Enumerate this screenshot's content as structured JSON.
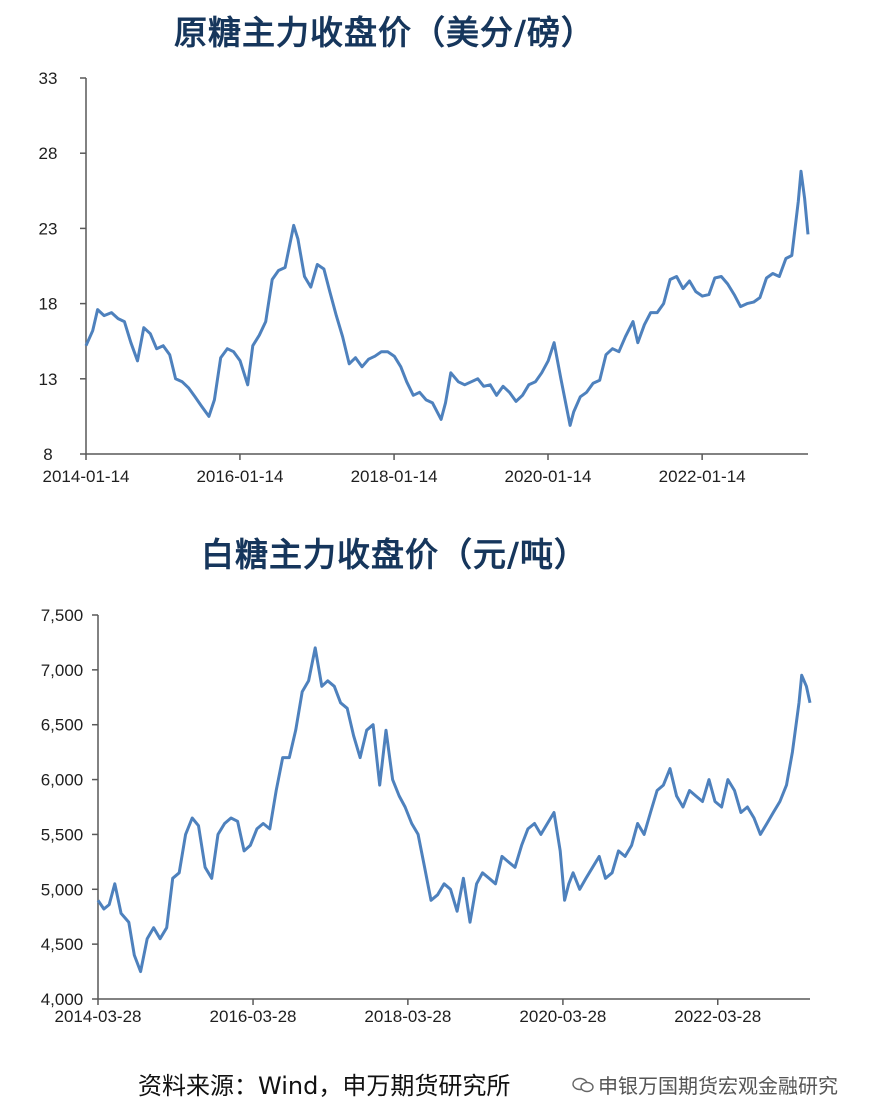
{
  "source_note": "资料来源：Wind，申万期货研究所",
  "watermark": {
    "text": "申银万国期货宏观金融研究",
    "icon": "wechat-icon"
  },
  "colors": {
    "series": "#4e81bd",
    "title": "#16365c"
  },
  "chart_data": [
    {
      "type": "line",
      "title": "原糖主力收盘价（美分/磅）",
      "xlabel": "",
      "ylabel": "",
      "ylim": [
        8,
        33
      ],
      "y_ticks": [
        8,
        13,
        18,
        23,
        28,
        33
      ],
      "y_tick_labels": [
        "8",
        "13",
        "18",
        "23",
        "28",
        "33"
      ],
      "x_ticks": [
        "2014-01-14",
        "2016-01-14",
        "2018-01-14",
        "2020-01-14",
        "2022-01-14"
      ],
      "xlim": [
        "2014-01-14",
        "2023-05-31"
      ],
      "series": [
        {
          "x": [
            "2014-01-14",
            "2014-02-15",
            "2014-03-10",
            "2014-04-10",
            "2014-05-15",
            "2014-06-15",
            "2014-07-15",
            "2014-08-15",
            "2014-09-15",
            "2014-10-15",
            "2014-11-15",
            "2014-12-15",
            "2015-01-15",
            "2015-02-15",
            "2015-03-15",
            "2015-04-15",
            "2015-05-15",
            "2015-06-15",
            "2015-07-15",
            "2015-08-20",
            "2015-09-15",
            "2015-10-15",
            "2015-11-15",
            "2015-12-15",
            "2016-01-15",
            "2016-02-20",
            "2016-03-15",
            "2016-04-15",
            "2016-05-15",
            "2016-06-15",
            "2016-07-15",
            "2016-08-15",
            "2016-09-25",
            "2016-10-15",
            "2016-11-15",
            "2016-12-15",
            "2017-01-15",
            "2017-02-15",
            "2017-03-15",
            "2017-04-15",
            "2017-05-15",
            "2017-06-15",
            "2017-07-15",
            "2017-08-15",
            "2017-09-15",
            "2017-10-15",
            "2017-11-15",
            "2017-12-15",
            "2018-01-15",
            "2018-02-15",
            "2018-03-15",
            "2018-04-15",
            "2018-05-15",
            "2018-06-15",
            "2018-07-15",
            "2018-08-25",
            "2018-09-15",
            "2018-10-10",
            "2018-11-15",
            "2018-12-15",
            "2019-01-15",
            "2019-02-15",
            "2019-03-15",
            "2019-04-15",
            "2019-05-15",
            "2019-06-15",
            "2019-07-15",
            "2019-08-15",
            "2019-09-15",
            "2019-10-15",
            "2019-11-15",
            "2019-12-15",
            "2020-01-15",
            "2020-02-12",
            "2020-03-15",
            "2020-04-28",
            "2020-05-15",
            "2020-06-15",
            "2020-07-15",
            "2020-08-15",
            "2020-09-15",
            "2020-10-15",
            "2020-11-15",
            "2020-12-15",
            "2021-01-15",
            "2021-02-20",
            "2021-03-15",
            "2021-04-15",
            "2021-05-15",
            "2021-06-15",
            "2021-07-15",
            "2021-08-15",
            "2021-09-15",
            "2021-10-15",
            "2021-11-15",
            "2021-12-15",
            "2022-01-15",
            "2022-02-15",
            "2022-03-15",
            "2022-04-15",
            "2022-05-15",
            "2022-06-15",
            "2022-07-15",
            "2022-08-15",
            "2022-09-15",
            "2022-10-15",
            "2022-11-15",
            "2022-12-15",
            "2023-01-15",
            "2023-02-15",
            "2023-03-15",
            "2023-04-15",
            "2023-04-28",
            "2023-05-15",
            "2023-05-31"
          ],
          "y": [
            15.2,
            16.2,
            17.6,
            17.2,
            17.4,
            17.0,
            16.8,
            15.4,
            14.2,
            16.4,
            16.0,
            15.0,
            15.2,
            14.6,
            13.0,
            12.8,
            12.4,
            11.8,
            11.2,
            10.5,
            11.6,
            14.4,
            15.0,
            14.8,
            14.2,
            12.6,
            15.2,
            15.9,
            16.8,
            19.6,
            20.2,
            20.4,
            23.2,
            22.3,
            19.8,
            19.1,
            20.6,
            20.3,
            18.8,
            17.2,
            15.8,
            14.0,
            14.4,
            13.8,
            14.3,
            14.5,
            14.8,
            14.8,
            14.5,
            13.8,
            12.8,
            11.9,
            12.1,
            11.6,
            11.4,
            10.3,
            11.4,
            13.4,
            12.8,
            12.6,
            12.8,
            13.0,
            12.5,
            12.6,
            11.9,
            12.5,
            12.1,
            11.5,
            11.9,
            12.6,
            12.8,
            13.4,
            14.2,
            15.4,
            13.0,
            9.9,
            10.8,
            11.8,
            12.1,
            12.7,
            12.9,
            14.6,
            15.0,
            14.8,
            15.8,
            16.8,
            15.4,
            16.6,
            17.4,
            17.4,
            18.0,
            19.6,
            19.8,
            19.0,
            19.5,
            18.8,
            18.5,
            18.6,
            19.7,
            19.8,
            19.3,
            18.6,
            17.8,
            18.0,
            18.1,
            18.4,
            19.7,
            20.0,
            19.8,
            21.0,
            21.2,
            24.8,
            26.8,
            25.0,
            22.6
          ]
        }
      ]
    },
    {
      "type": "line",
      "title": "白糖主力收盘价（元/吨）",
      "xlabel": "",
      "ylabel": "",
      "ylim": [
        4000,
        7500
      ],
      "y_ticks": [
        4000,
        4500,
        5000,
        5500,
        6000,
        6500,
        7000,
        7500
      ],
      "y_tick_labels": [
        "4,000",
        "4,500",
        "5,000",
        "5,500",
        "6,000",
        "6,500",
        "7,000",
        "7,500"
      ],
      "x_ticks": [
        "2014-03-28",
        "2016-03-28",
        "2018-03-28",
        "2020-03-28",
        "2022-03-28"
      ],
      "xlim": [
        "2014-03-28",
        "2023-06-06"
      ],
      "series": [
        {
          "x": [
            "2014-03-28",
            "2014-04-25",
            "2014-05-20",
            "2014-06-15",
            "2014-07-15",
            "2014-08-20",
            "2014-09-15",
            "2014-10-15",
            "2014-11-15",
            "2014-12-15",
            "2015-01-15",
            "2015-02-15",
            "2015-03-15",
            "2015-04-15",
            "2015-05-15",
            "2015-06-15",
            "2015-07-15",
            "2015-08-15",
            "2015-09-15",
            "2015-10-15",
            "2015-11-15",
            "2015-12-15",
            "2016-01-15",
            "2016-02-15",
            "2016-03-15",
            "2016-04-15",
            "2016-05-15",
            "2016-06-15",
            "2016-07-15",
            "2016-08-15",
            "2016-09-15",
            "2016-10-15",
            "2016-11-15",
            "2016-12-15",
            "2017-01-15",
            "2017-02-15",
            "2017-03-15",
            "2017-04-15",
            "2017-05-15",
            "2017-06-15",
            "2017-07-15",
            "2017-08-15",
            "2017-09-15",
            "2017-10-15",
            "2017-11-15",
            "2017-12-15",
            "2018-01-15",
            "2018-02-15",
            "2018-03-15",
            "2018-04-15",
            "2018-05-15",
            "2018-06-15",
            "2018-07-15",
            "2018-08-15",
            "2018-09-15",
            "2018-10-15",
            "2018-11-15",
            "2018-12-15",
            "2019-01-15",
            "2019-02-15",
            "2019-03-15",
            "2019-04-15",
            "2019-05-15",
            "2019-06-15",
            "2019-07-15",
            "2019-08-15",
            "2019-09-15",
            "2019-10-15",
            "2019-11-15",
            "2019-12-15",
            "2020-01-15",
            "2020-02-15",
            "2020-03-15",
            "2020-04-05",
            "2020-04-25",
            "2020-05-15",
            "2020-06-15",
            "2020-07-15",
            "2020-08-15",
            "2020-09-15",
            "2020-10-15",
            "2020-11-15",
            "2020-12-15",
            "2021-01-15",
            "2021-02-15",
            "2021-03-15",
            "2021-04-15",
            "2021-05-15",
            "2021-06-15",
            "2021-07-15",
            "2021-08-15",
            "2021-09-15",
            "2021-10-15",
            "2021-11-15",
            "2021-12-15",
            "2022-01-15",
            "2022-02-15",
            "2022-03-15",
            "2022-04-15",
            "2022-05-15",
            "2022-06-15",
            "2022-07-15",
            "2022-08-15",
            "2022-09-15",
            "2022-10-15",
            "2022-11-15",
            "2022-12-15",
            "2023-01-15",
            "2023-02-15",
            "2023-03-15",
            "2023-04-15",
            "2023-04-28",
            "2023-05-20",
            "2023-06-06"
          ],
          "y": [
            4900,
            4820,
            4860,
            5050,
            4780,
            4700,
            4400,
            4250,
            4550,
            4650,
            4550,
            4650,
            5100,
            5150,
            5500,
            5650,
            5580,
            5200,
            5100,
            5500,
            5600,
            5650,
            5620,
            5350,
            5400,
            5550,
            5600,
            5550,
            5900,
            6200,
            6200,
            6450,
            6800,
            6900,
            7200,
            6850,
            6900,
            6850,
            6700,
            6650,
            6400,
            6200,
            6450,
            6500,
            5950,
            6450,
            6000,
            5850,
            5750,
            5600,
            5500,
            5200,
            4900,
            4950,
            5050,
            5000,
            4800,
            5100,
            4700,
            5050,
            5150,
            5100,
            5050,
            5300,
            5250,
            5200,
            5400,
            5550,
            5600,
            5500,
            5600,
            5700,
            5350,
            4900,
            5050,
            5150,
            5000,
            5100,
            5200,
            5300,
            5100,
            5150,
            5350,
            5300,
            5400,
            5600,
            5500,
            5700,
            5900,
            5950,
            6100,
            5850,
            5750,
            5900,
            5850,
            5800,
            6000,
            5800,
            5750,
            6000,
            5900,
            5700,
            5750,
            5650,
            5500,
            5600,
            5700,
            5800,
            5950,
            6250,
            6700,
            6950,
            6850,
            6700
          ]
        }
      ]
    }
  ]
}
